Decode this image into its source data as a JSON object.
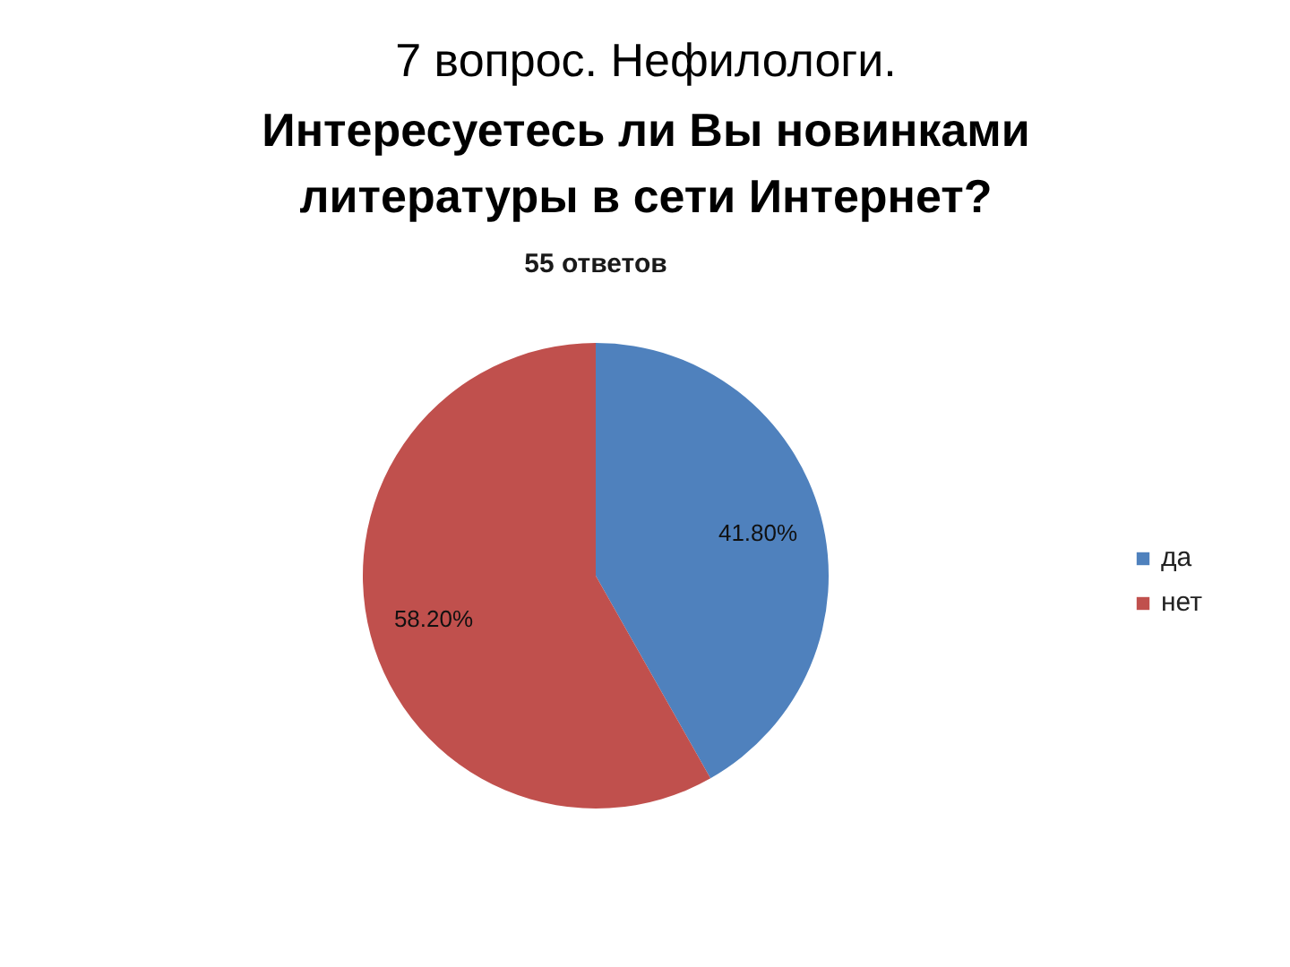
{
  "chart_data": {
    "type": "pie",
    "title": "7 вопрос. Нефилологи.",
    "subtitle": "Интересуетесь ли Вы новинками литературы в сети Интернет?",
    "annotations": [
      "55 ответов"
    ],
    "categories": [
      "да",
      "нет"
    ],
    "values": [
      41.8,
      58.2
    ],
    "colors": [
      "#4f81bd",
      "#c0504d"
    ],
    "value_labels": [
      "41.80%",
      "58.20%"
    ],
    "legend": "right"
  }
}
